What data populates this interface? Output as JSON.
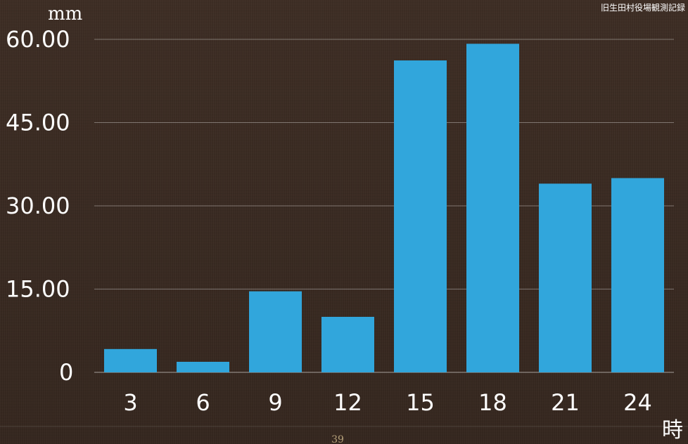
{
  "chart_data": {
    "type": "bar",
    "categories": [
      "3",
      "6",
      "9",
      "12",
      "15",
      "18",
      "21",
      "24"
    ],
    "values": [
      4.2,
      1.9,
      14.6,
      10.0,
      56.2,
      59.2,
      34.0,
      35.0
    ],
    "yticks": [
      "0",
      "15.00",
      "30.00",
      "45.00",
      "60.00"
    ],
    "ylim": [
      0,
      60
    ],
    "ylabel": "mm",
    "xlabel": "時",
    "source": "旧生田村役場観測記録",
    "bar_color": "#31a6dc",
    "grid": true
  },
  "page_number": "39"
}
